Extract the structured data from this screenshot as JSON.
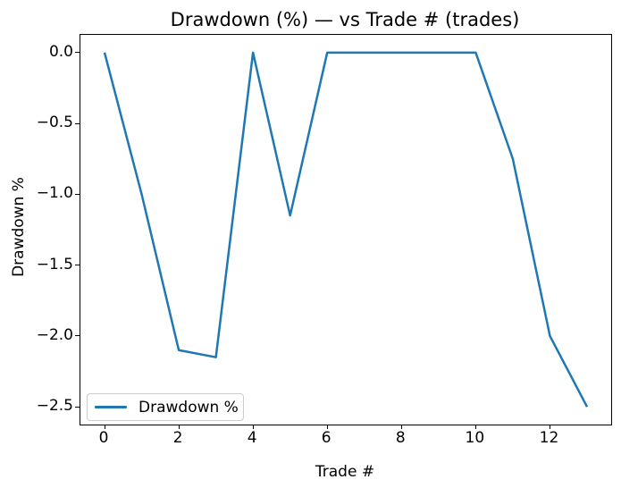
{
  "figure": {
    "background": "#ffffff"
  },
  "chart_data": {
    "type": "line",
    "title": "Drawdown (%) — vs Trade # (trades)",
    "xlabel": "Trade #",
    "ylabel": "Drawdown %",
    "x": [
      0,
      1,
      2,
      3,
      4,
      5,
      6,
      7,
      8,
      9,
      10,
      11,
      12,
      13
    ],
    "series": [
      {
        "name": "Drawdown %",
        "color": "#1f77b4",
        "values": [
          0.0,
          -1.0,
          -2.1,
          -2.15,
          0.0,
          -1.15,
          0.0,
          0.0,
          0.0,
          0.0,
          0.0,
          -0.75,
          -2.0,
          -2.5
        ]
      }
    ],
    "xlim": [
      -0.65,
      13.65
    ],
    "ylim": [
      -2.625,
      0.125
    ],
    "xticks": {
      "values": [
        0,
        2,
        4,
        6,
        8,
        10,
        12
      ],
      "labels": [
        "0",
        "2",
        "4",
        "6",
        "8",
        "10",
        "12"
      ]
    },
    "yticks": {
      "values": [
        0,
        -0.5,
        -1,
        -1.5,
        -2,
        -2.5
      ],
      "labels": [
        "0.0",
        "−0.5",
        "−1.0",
        "−1.5",
        "−2.0",
        "−2.5"
      ]
    },
    "grid": false,
    "legend": {
      "position": "lower left",
      "entries": [
        "Drawdown %"
      ]
    }
  },
  "colors": {
    "line": "#1f77b4",
    "spine": "#000000",
    "text": "#000000",
    "legend_border": "#cccccc"
  }
}
